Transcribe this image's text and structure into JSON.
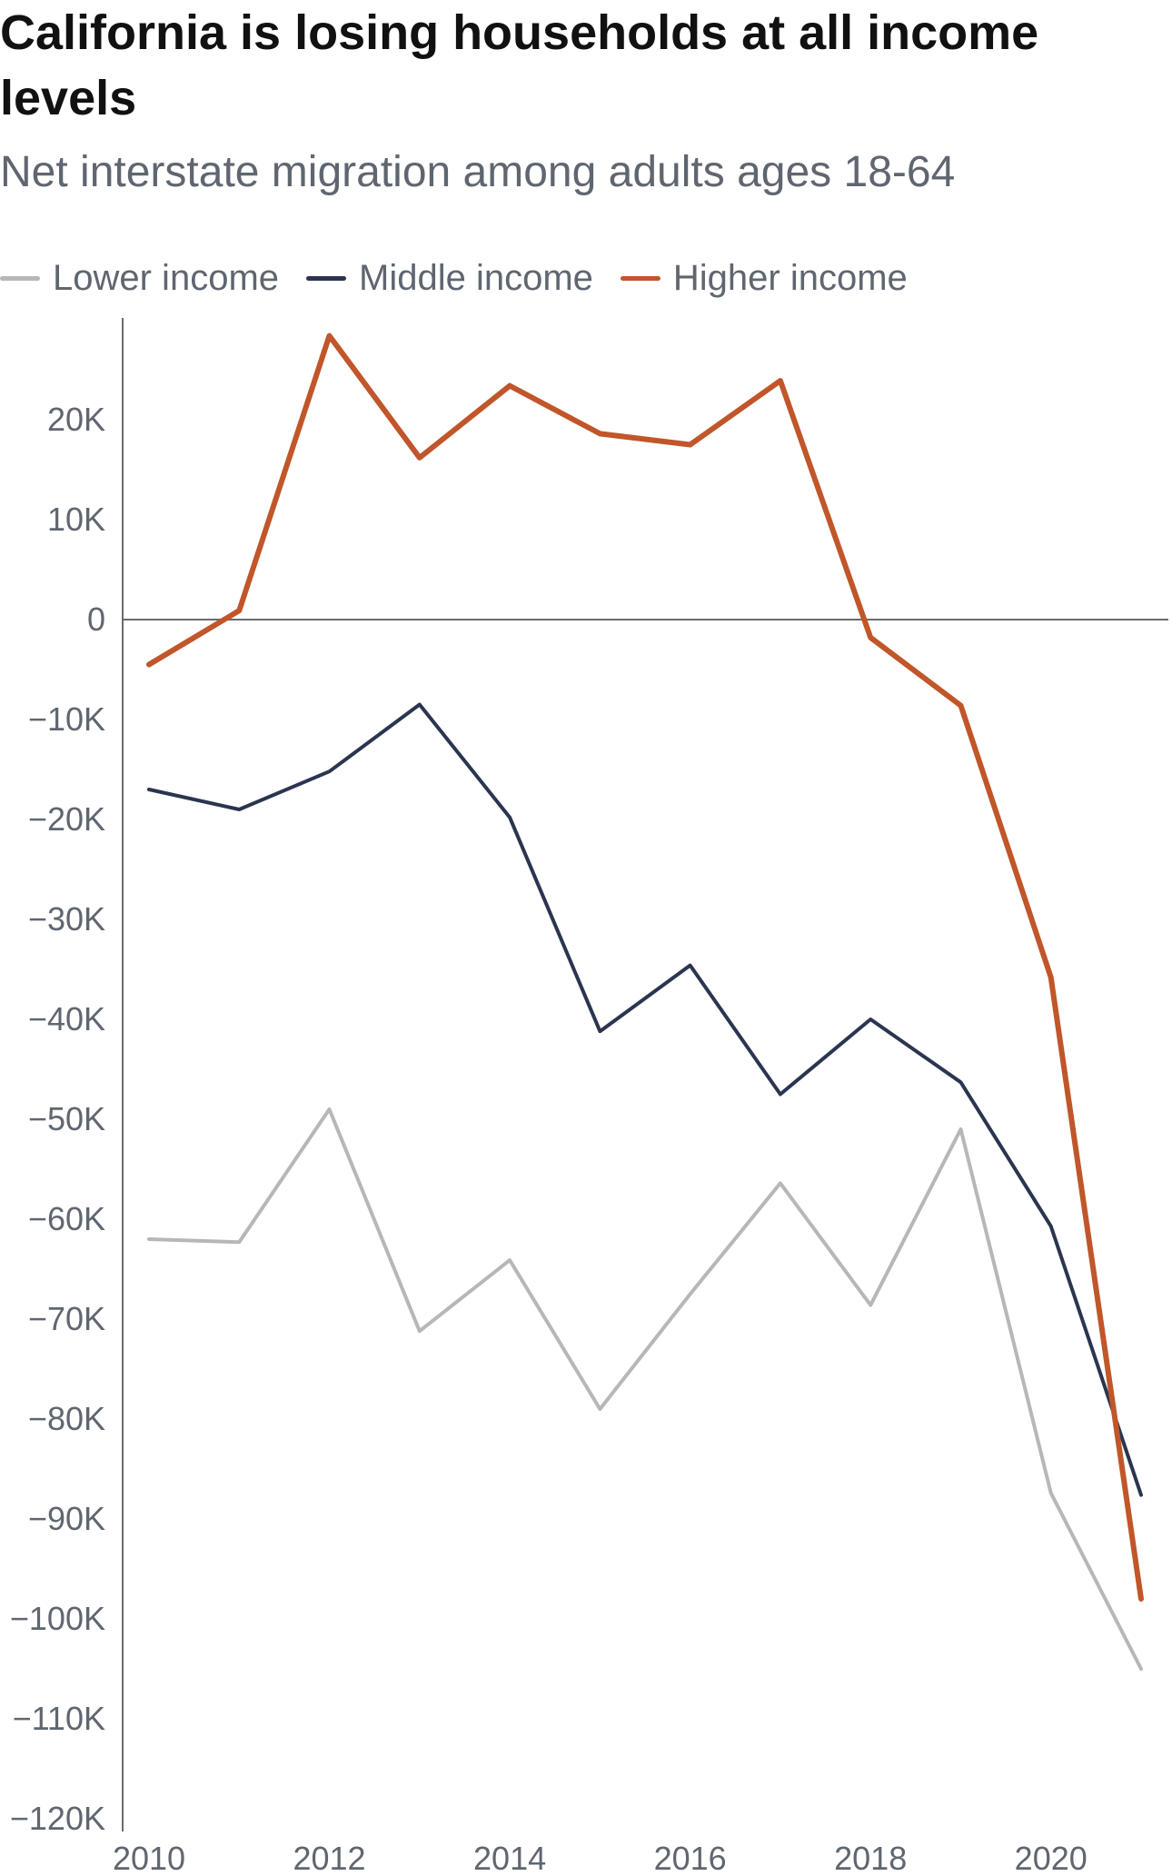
{
  "title": "California is losing households at all income levels",
  "subtitle": "Net interstate migration among adults ages 18-64",
  "legend": [
    {
      "label": "Lower income",
      "color": "#b7b7b7"
    },
    {
      "label": "Middle income",
      "color": "#2b3550"
    },
    {
      "label": "Higher income",
      "color": "#c0562a"
    }
  ],
  "chart_data": {
    "type": "line",
    "title": "California is losing households at all income levels",
    "subtitle": "Net interstate migration among adults ages 18-64",
    "xlabel": "",
    "ylabel": "",
    "x": [
      2010,
      2011,
      2012,
      2013,
      2014,
      2015,
      2016,
      2017,
      2018,
      2019,
      2020,
      2021
    ],
    "xlim": [
      2010,
      2021
    ],
    "x_ticks": [
      "2010",
      "2012",
      "2014",
      "2016",
      "2018",
      "2020"
    ],
    "ylim": [
      -120000,
      28000
    ],
    "y_ticks": [
      {
        "value": 20000,
        "label": "20K"
      },
      {
        "value": 10000,
        "label": "10K"
      },
      {
        "value": 0,
        "label": "0"
      },
      {
        "value": -10000,
        "label": "−10K"
      },
      {
        "value": -20000,
        "label": "−20K"
      },
      {
        "value": -30000,
        "label": "−30K"
      },
      {
        "value": -40000,
        "label": "−40K"
      },
      {
        "value": -50000,
        "label": "−50K"
      },
      {
        "value": -60000,
        "label": "−60K"
      },
      {
        "value": -70000,
        "label": "−70K"
      },
      {
        "value": -80000,
        "label": "−80K"
      },
      {
        "value": -90000,
        "label": "−90K"
      },
      {
        "value": -100000,
        "label": "−100K"
      },
      {
        "value": -110000,
        "label": "−110K"
      },
      {
        "value": -120000,
        "label": "−120K"
      }
    ],
    "series": [
      {
        "name": "Lower income",
        "color": "#b7b7b7",
        "values": [
          -62000,
          -62300,
          -49000,
          -71200,
          -64100,
          -79000,
          -67500,
          -56400,
          -68600,
          -51000,
          -87400,
          -105000
        ]
      },
      {
        "name": "Middle income",
        "color": "#2b3550",
        "values": [
          -17000,
          -19000,
          -15200,
          -8500,
          -19800,
          -41200,
          -34600,
          -47500,
          -40000,
          -46300,
          -60700,
          -87600
        ]
      },
      {
        "name": "Higher income",
        "color": "#c0562a",
        "values": [
          -4500,
          900,
          28400,
          16200,
          23400,
          18600,
          17500,
          23900,
          -1800,
          -8600,
          -35800,
          -98000
        ]
      }
    ],
    "grid": false,
    "legend_position": "top-left"
  }
}
